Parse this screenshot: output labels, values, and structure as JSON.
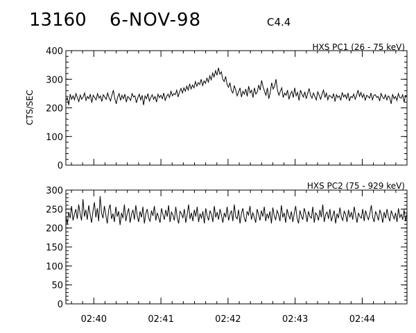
{
  "header": {
    "event_id": "13160",
    "date": "6-NOV-98",
    "flare_class": "C4.4"
  },
  "chart_data": [
    {
      "type": "line",
      "title": "HXS PC1 (26 - 75 keV)",
      "ylabel": "CTS/SEC",
      "ylim": [
        0,
        400
      ],
      "yticks": [
        0,
        100,
        200,
        300,
        400
      ],
      "xlim": [
        "02:39:35",
        "02:44:40"
      ],
      "xtick_labels": [
        "02:40",
        "02:41",
        "02:42",
        "02:43",
        "02:44"
      ],
      "series": [
        {
          "x_start": "02:39:35",
          "x_end": "02:44:40",
          "values": [
            225,
            235,
            210,
            248,
            230,
            242,
            228,
            250,
            236,
            222,
            245,
            230,
            238,
            252,
            226,
            240,
            232,
            248,
            218,
            244,
            236,
            228,
            250,
            234,
            242,
            222,
            246,
            238,
            230,
            252,
            236,
            224,
            244,
            262,
            232,
            214,
            238,
            250,
            226,
            244,
            232,
            248,
            220,
            240,
            234,
            226,
            250,
            238,
            242,
            218,
            236,
            248,
            228,
            244,
            210,
            242,
            232,
            250,
            224,
            236,
            246,
            230,
            240,
            220,
            248,
            236,
            244,
            232,
            252,
            226,
            240,
            248,
            236,
            258,
            242,
            250,
            246,
            262,
            238,
            256,
            268,
            252,
            270,
            258,
            276,
            262,
            284,
            266,
            280,
            270,
            292,
            276,
            288,
            282,
            300,
            278,
            294,
            286,
            304,
            290,
            312,
            298,
            322,
            308,
            330,
            314,
            340,
            318,
            326,
            300,
            292,
            310,
            282,
            272,
            288,
            260,
            252,
            278,
            262,
            242,
            256,
            270,
            238,
            258,
            248,
            266,
            240,
            276,
            252,
            262,
            236,
            270,
            248,
            256,
            280,
            262,
            296,
            274,
            258,
            244,
            270,
            232,
            254,
            288,
            266,
            276,
            300,
            262,
            244,
            258,
            270,
            236,
            252,
            244,
            262,
            230,
            248,
            258,
            236,
            270,
            242,
            254,
            226,
            262,
            248,
            238,
            256,
            232,
            250,
            268,
            244,
            234,
            252,
            240,
            228,
            256,
            244,
            230,
            248,
            262,
            236,
            252,
            228,
            244,
            240,
            234,
            250,
            222,
            246,
            236,
            242,
            226,
            254,
            238,
            246,
            232,
            252,
            224,
            240,
            236,
            248,
            230,
            244,
            262,
            240,
            254,
            236,
            248,
            226,
            244,
            240,
            234,
            252,
            228,
            244,
            246,
            236,
            240,
            224,
            250,
            238,
            232,
            246,
            228,
            242,
            236,
            214,
            248,
            232,
            240,
            226,
            250,
            236,
            234,
            246,
            220,
            244,
            240
          ],
          "color": "#000000"
        }
      ]
    },
    {
      "type": "line",
      "title": "HXS PC2 (75 - 929 keV)",
      "ylabel": "",
      "ylim": [
        0,
        300
      ],
      "yticks": [
        0,
        50,
        100,
        150,
        200,
        250,
        300
      ],
      "xlim": [
        "02:39:35",
        "02:44:40"
      ],
      "xtick_labels": [
        "02:40",
        "02:41",
        "02:42",
        "02:43",
        "02:44"
      ],
      "series": [
        {
          "x_start": "02:39:35",
          "x_end": "02:44:40",
          "values": [
            232,
            210,
            242,
            226,
            258,
            220,
            236,
            250,
            224,
            262,
            238,
            220,
            276,
            230,
            248,
            222,
            260,
            236,
            214,
            244,
            268,
            228,
            252,
            218,
            284,
            240,
            226,
            258,
            234,
            212,
            248,
            262,
            224,
            238,
            216,
            256,
            230,
            244,
            208,
            240,
            226,
            262,
            218,
            238,
            252,
            214,
            236,
            248,
            222,
            260,
            232,
            216,
            244,
            228,
            256,
            212,
            238,
            250,
            226,
            218,
            246,
            232,
            258,
            220,
            240,
            228,
            214,
            252,
            236,
            222,
            248,
            230,
            260,
            216,
            242,
            234,
            220,
            256,
            228,
            212,
            244,
            238,
            226,
            250,
            214,
            236,
            262,
            224,
            240,
            218,
            248,
            230,
            256,
            216,
            238,
            226,
            244,
            212,
            252,
            232,
            220,
            246,
            236,
            216,
            258,
            228,
            242,
            222,
            250,
            234,
            214,
            240,
            228,
            256,
            220,
            236,
            246,
            218,
            262,
            230,
            224,
            248,
            212,
            238,
            252,
            226,
            216,
            244,
            234,
            258,
            222,
            240,
            228,
            214,
            250,
            236,
            220,
            246,
            230,
            256,
            218,
            238,
            226,
            244,
            212,
            254,
            232,
            222,
            246,
            236,
            218,
            260,
            228,
            240,
            214,
            250,
            234,
            224,
            244,
            216,
            238,
            258,
            226,
            212,
            246,
            232,
            222,
            252,
            238,
            216,
            244,
            230,
            226,
            256,
            214,
            240,
            234,
            220,
            248,
            228,
            262,
            216,
            236,
            242,
            224,
            250,
            218,
            232,
            246,
            212,
            238,
            226,
            254,
            230,
            220,
            244,
            236,
            216,
            248,
            228,
            242,
            222,
            256,
            234,
            214,
            240,
            230,
            226,
            250,
            218,
            246,
            232,
            222,
            238,
            260,
            228,
            216,
            244,
            234,
            220,
            248,
            236,
            214,
            242,
            226,
            250,
            230,
            218,
            246,
            234,
            224,
            240,
            216,
            252,
            228,
            236,
            222,
            248,
            218,
            240
          ],
          "color": "#000000"
        }
      ]
    }
  ]
}
